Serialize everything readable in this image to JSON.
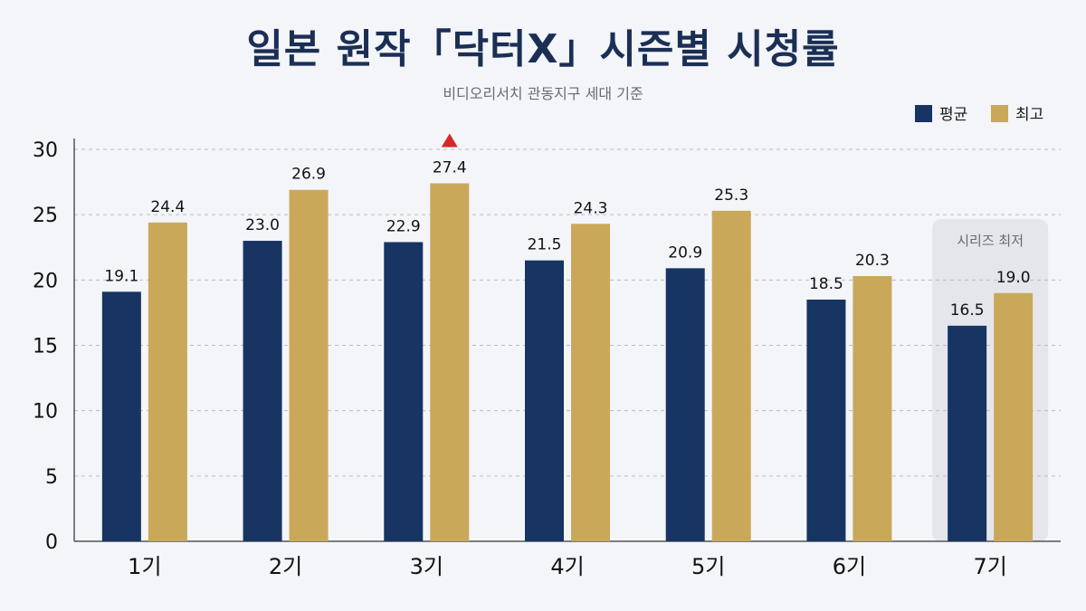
{
  "chart_data": {
    "type": "bar",
    "title": "일본 원작「닥터X」시즌별 시청률",
    "subtitle": "비디오리서치 관동지구 세대 기준",
    "categories": [
      "1기",
      "2기",
      "3기",
      "4기",
      "5기",
      "6기",
      "7기"
    ],
    "series": [
      {
        "name": "평균",
        "color": "#173462",
        "values": [
          19.1,
          23.0,
          22.9,
          21.5,
          20.9,
          18.5,
          16.5
        ]
      },
      {
        "name": "최고",
        "color": "#c9a85a",
        "values": [
          24.4,
          26.9,
          27.4,
          24.3,
          25.3,
          20.3,
          19.0
        ]
      }
    ],
    "yticks": [
      0,
      5,
      10,
      15,
      20,
      25,
      30
    ],
    "ylim": [
      0,
      30
    ],
    "grid": true,
    "legend": "top-right",
    "annotations": [
      {
        "type": "marker",
        "symbol": "triangle",
        "color": "#d62828",
        "category": "3기",
        "series": "최고"
      },
      {
        "type": "highlight",
        "category": "7기",
        "text": "시리즈 최저",
        "color": "#e4e6eb"
      }
    ]
  }
}
